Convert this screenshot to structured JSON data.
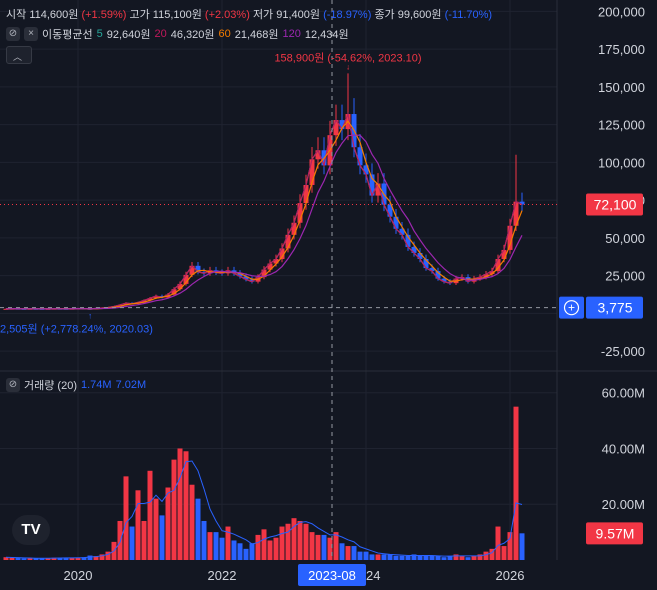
{
  "legend": {
    "open_label": "시작",
    "open_value": "114,600원",
    "open_pct": "(+1.59%)",
    "high_label": "고가",
    "high_value": "115,100원",
    "high_pct": "(+2.03%)",
    "low_label": "저가",
    "low_value": "91,400원",
    "low_pct": "(-18.97%)",
    "close_label": "종가",
    "close_value": "99,600원",
    "close_pct": "(-11.70%)"
  },
  "ma_legend": {
    "title": "이동평균선",
    "p1": "5",
    "v1": "92,640원",
    "p2": "20",
    "v2": "46,320원",
    "p3": "60",
    "v3": "21,468원",
    "p4": "120",
    "v4": "12,434원"
  },
  "volume_legend": {
    "title": "거래량 (20)",
    "v1": "1.74M",
    "v2": "7.02M"
  },
  "colors": {
    "background": "#131722",
    "up": "#f23645",
    "down": "#2962ff",
    "ma5": "#26a69a",
    "ma20": "#c2185b",
    "ma60": "#f57c00",
    "ma120": "#9c27b0",
    "volume_ma": "#2962ff",
    "grid": "#1f2330"
  },
  "icons": {
    "visibility": "eye-slash-icon",
    "close": "close-icon",
    "collapse": "chevron-up-icon",
    "add": "plus-circle-icon",
    "logo": "tradingview-logo"
  },
  "chart_data": [
    {
      "type": "candlestick",
      "title": "",
      "x_ticks": [
        "2020",
        "2022",
        "2023-08",
        "2024",
        "2026"
      ],
      "crosshair_label": "2023-08",
      "y_ticks": [
        "200,000",
        "175,000",
        "150,000",
        "125,000",
        "100,000",
        "75,000",
        "50,000",
        "25,000",
        "0",
        "-25,000"
      ],
      "ylim": [
        -37500,
        207500
      ],
      "last_price": 72100,
      "last_price_label": "72,100",
      "crosshair_price_label": "3,775",
      "max_annotation": "158,900원 (-54.62%, 2023.10)",
      "min_annotation": "2,505원 (+2,778.24%, 2020.03)",
      "months": [
        "2019.01",
        "2019.02",
        "2019.03",
        "2019.04",
        "2019.05",
        "2019.06",
        "2019.07",
        "2019.08",
        "2019.09",
        "2019.10",
        "2019.11",
        "2019.12",
        "2020.01",
        "2020.02",
        "2020.03",
        "2020.04",
        "2020.05",
        "2020.06",
        "2020.07",
        "2020.08",
        "2020.09",
        "2020.10",
        "2020.11",
        "2020.12",
        "2021.01",
        "2021.02",
        "2021.03",
        "2021.04",
        "2021.05",
        "2021.06",
        "2021.07",
        "2021.08",
        "2021.09",
        "2021.10",
        "2021.11",
        "2021.12",
        "2022.01",
        "2022.02",
        "2022.03",
        "2022.04",
        "2022.05",
        "2022.06",
        "2022.07",
        "2022.08",
        "2022.09",
        "2022.10",
        "2022.11",
        "2022.12",
        "2023.01",
        "2023.02",
        "2023.03",
        "2023.04",
        "2023.05",
        "2023.06",
        "2023.07",
        "2023.08",
        "2023.09",
        "2023.10",
        "2023.11",
        "2023.12",
        "2024.01",
        "2024.02",
        "2024.03",
        "2024.04",
        "2024.05",
        "2024.06",
        "2024.07",
        "2024.08",
        "2024.09",
        "2024.10",
        "2024.11",
        "2024.12",
        "2025.01",
        "2025.02",
        "2025.03",
        "2025.04",
        "2025.05",
        "2025.06",
        "2025.07",
        "2025.08",
        "2025.09",
        "2025.10",
        "2025.11",
        "2025.12",
        "2026.01",
        "2026.02",
        "2026.03"
      ],
      "close": [
        3000,
        3100,
        3000,
        2950,
        3050,
        3000,
        2950,
        3000,
        3100,
        3050,
        3000,
        3100,
        3200,
        3100,
        2800,
        3300,
        3600,
        3900,
        4600,
        5600,
        6800,
        6400,
        7200,
        8600,
        10000,
        11500,
        10500,
        12500,
        16000,
        19500,
        25500,
        31500,
        27500,
        26500,
        28500,
        27000,
        26500,
        28500,
        26500,
        24500,
        22500,
        21000,
        24000,
        29000,
        33000,
        36000,
        43000,
        52000,
        60000,
        73000,
        85000,
        102000,
        108000,
        98000,
        118000,
        128000,
        122000,
        132000,
        110000,
        98000,
        92000,
        78000,
        86000,
        72000,
        64000,
        56000,
        52000,
        44000,
        40000,
        36000,
        30000,
        28000,
        23000,
        21000,
        20000,
        23000,
        24000,
        21000,
        23000,
        24000,
        26000,
        28000,
        36000,
        42000,
        58000,
        74000,
        72100
      ],
      "volume_millions": [
        1.0,
        0.8,
        0.7,
        0.6,
        0.7,
        0.6,
        0.6,
        0.7,
        0.8,
        0.8,
        0.7,
        0.8,
        0.9,
        1.0,
        1.6,
        1.4,
        2.0,
        3.0,
        6.5,
        14.0,
        30.0,
        12.0,
        25.0,
        14.0,
        32.0,
        22.0,
        16.0,
        26.0,
        36.0,
        40.0,
        39.0,
        27.0,
        22.0,
        14.0,
        10.0,
        10.0,
        8.0,
        12.0,
        7.0,
        6.0,
        4.0,
        6.0,
        9.0,
        11.0,
        7.0,
        8.0,
        12.0,
        13.0,
        15.0,
        14.0,
        13.0,
        10.0,
        9.0,
        9.0,
        8.0,
        10.0,
        6.0,
        5.0,
        5.0,
        3.0,
        3.0,
        2.0,
        2.0,
        2.0,
        2.0,
        1.5,
        1.5,
        1.5,
        2.0,
        1.5,
        1.5,
        1.5,
        1.5,
        1.0,
        1.5,
        2.0,
        1.5,
        1.0,
        1.5,
        2.0,
        3.0,
        4.0,
        12.0,
        5.0,
        10.0,
        55.0,
        9.57
      ],
      "volume_y_ticks": [
        "60.00M",
        "40.00M",
        "20.00M"
      ],
      "volume_ylim": [
        0,
        66
      ],
      "last_volume_label": "9.57M",
      "ma_periods": [
        5,
        20,
        60,
        120
      ]
    }
  ]
}
